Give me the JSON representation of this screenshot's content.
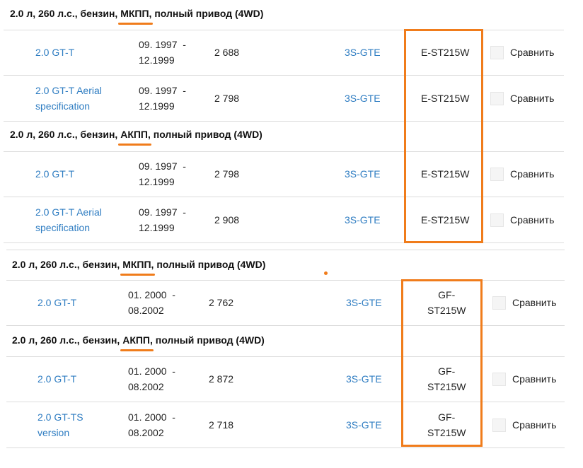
{
  "groups": [
    {
      "header": {
        "pre": "2.0 л, 260 л.с., бензин, ",
        "trans": "МКПП",
        "post": ", полный привод (4WD)"
      },
      "rows": [
        {
          "model": [
            "2.0 GT-T"
          ],
          "dates": [
            "09. 1997  -",
            "12.1999"
          ],
          "price": "2 688",
          "engine": "3S-GTE",
          "body": [
            "E-ST215W"
          ],
          "compare": "Сравнить"
        },
        {
          "model": [
            "2.0 GT-T Aerial",
            "specification"
          ],
          "dates": [
            "09. 1997  -",
            "12.1999"
          ],
          "price": "2 798",
          "engine": "3S-GTE",
          "body": [
            "E-ST215W"
          ],
          "compare": "Сравнить"
        }
      ]
    },
    {
      "header": {
        "pre": "2.0 л, 260 л.с., бензин, ",
        "trans": "АКПП",
        "post": ", полный привод (4WD)"
      },
      "rows": [
        {
          "model": [
            "2.0 GT-T"
          ],
          "dates": [
            "09. 1997  -",
            "12.1999"
          ],
          "price": "2 798",
          "engine": "3S-GTE",
          "body": [
            "E-ST215W"
          ],
          "compare": "Сравнить"
        },
        {
          "model": [
            "2.0 GT-T Aerial",
            "specification"
          ],
          "dates": [
            "09. 1997  -",
            "12.1999"
          ],
          "price": "2 908",
          "engine": "3S-GTE",
          "body": [
            "E-ST215W"
          ],
          "compare": "Сравнить"
        }
      ]
    },
    {
      "header": {
        "pre": "2.0 л, 260 л.с., бензин, ",
        "trans": "МКПП",
        "post": ", полный привод (4WD)"
      },
      "rows": [
        {
          "model": [
            "2.0 GT-T"
          ],
          "dates": [
            "01. 2000  -",
            "08.2002"
          ],
          "price": "2 762",
          "engine": "3S-GTE",
          "body": [
            "GF-",
            "ST215W"
          ],
          "compare": "Сравнить"
        }
      ]
    },
    {
      "header": {
        "pre": "2.0 л, 260 л.с., бензин, ",
        "trans": "АКПП",
        "post": ", полный привод (4WD)"
      },
      "rows": [
        {
          "model": [
            "2.0 GT-T"
          ],
          "dates": [
            "01. 2000  -",
            "08.2002"
          ],
          "price": "2 872",
          "engine": "3S-GTE",
          "body": [
            "GF-",
            "ST215W"
          ],
          "compare": "Сравнить"
        },
        {
          "model": [
            "2.0 GT-TS",
            "version"
          ],
          "dates": [
            "01. 2000  -",
            "08.2002"
          ],
          "price": "2 718",
          "engine": "3S-GTE",
          "body": [
            "GF-",
            "ST215W"
          ],
          "compare": "Сравнить"
        }
      ]
    }
  ],
  "accent_color": "#f07c1b",
  "link_color": "#2f7dc2"
}
